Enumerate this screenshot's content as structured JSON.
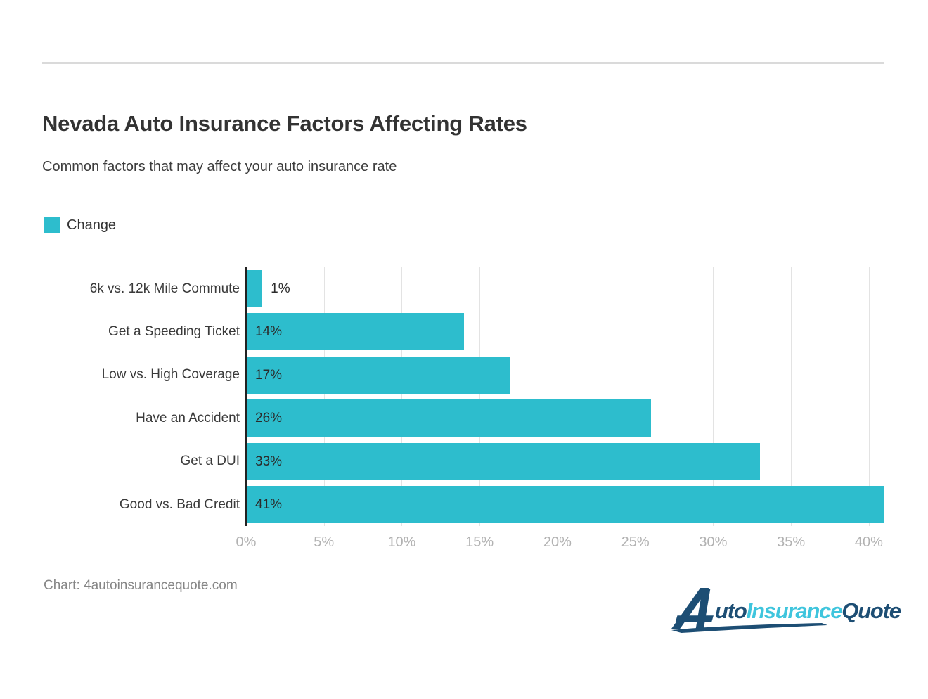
{
  "header": {
    "title": "Nevada Auto Insurance Factors Affecting Rates",
    "subtitle": "Common factors that may affect your auto insurance rate"
  },
  "legend": {
    "items": [
      {
        "label": "Change",
        "color": "#2dbdcd"
      }
    ]
  },
  "chart_data": {
    "type": "bar",
    "orientation": "horizontal",
    "title": "Nevada Auto Insurance Factors Affecting Rates",
    "subtitle": "Common factors that may affect your auto insurance rate",
    "categories": [
      "6k vs. 12k Mile Commute",
      "Get a Speeding Ticket",
      "Low vs. High Coverage",
      "Have an Accident",
      "Get a DUI",
      "Good vs. Bad Credit"
    ],
    "series": [
      {
        "name": "Change",
        "color": "#2dbdcd",
        "values": [
          1,
          14,
          17,
          26,
          33,
          41
        ]
      }
    ],
    "value_labels": [
      "1%",
      "14%",
      "17%",
      "26%",
      "33%",
      "41%"
    ],
    "xlabel": "",
    "ylabel": "",
    "xlim": [
      0,
      41
    ],
    "xticks": [
      {
        "value": 0,
        "label": "0%"
      },
      {
        "value": 5,
        "label": "5%"
      },
      {
        "value": 10,
        "label": "10%"
      },
      {
        "value": 15,
        "label": "15%"
      },
      {
        "value": 20,
        "label": "20%"
      },
      {
        "value": 25,
        "label": "25%"
      },
      {
        "value": 30,
        "label": "30%"
      },
      {
        "value": 35,
        "label": "35%"
      },
      {
        "value": 40,
        "label": "40%"
      }
    ],
    "grid": true,
    "legend_position": "top-left",
    "colors": {
      "bar": "#2dbdcd",
      "axis_line": "#222222",
      "grid_line": "#e3e3e3",
      "tick_label": "#b2b2b2",
      "category_label": "#3a3a3a",
      "value_label": "#2b2b2b"
    }
  },
  "footer": {
    "source": "Chart: 4autoinsurancequote.com"
  },
  "logo": {
    "alt": "AutoInsuranceQuote",
    "part_uto": "uto",
    "part_insurance": "Insurance",
    "part_quote": "Quote",
    "navy": "#1d4e74",
    "cyan": "#3fc5dd"
  }
}
